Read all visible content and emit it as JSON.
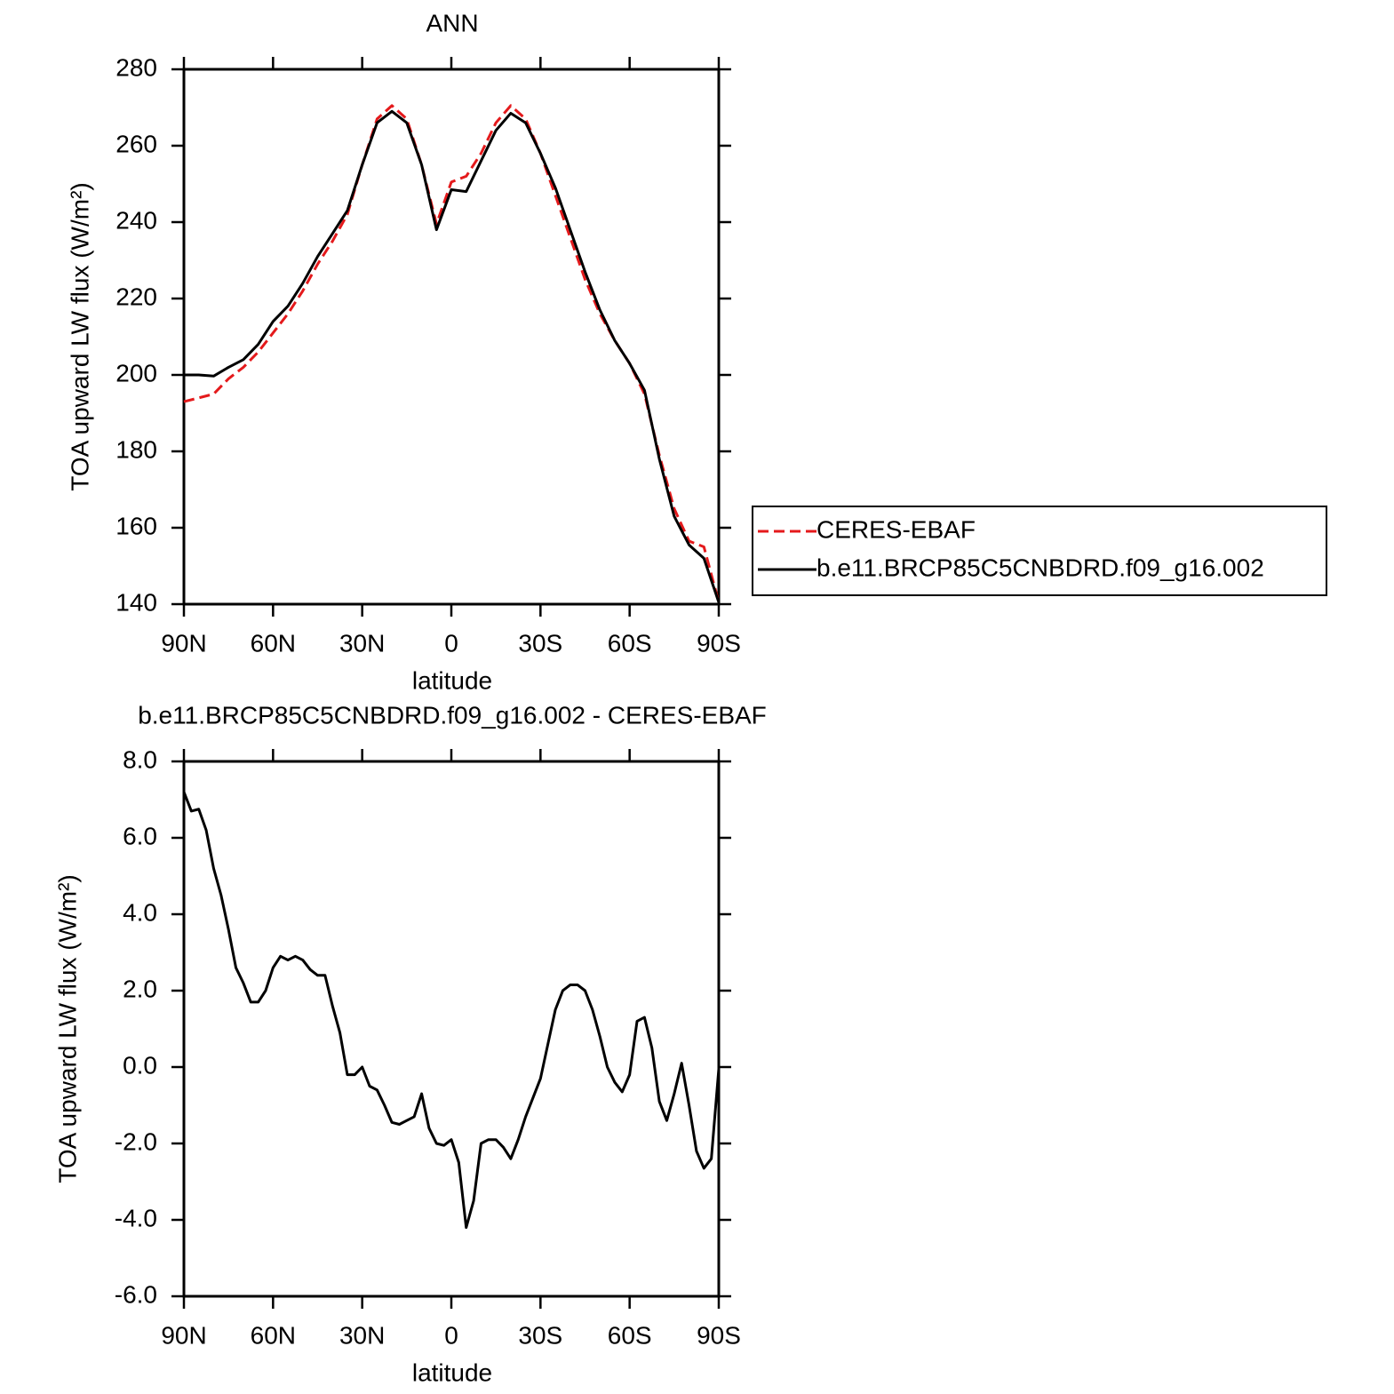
{
  "chart_data": [
    {
      "type": "line",
      "title": "ANN",
      "xlabel": "latitude",
      "ylabel": "TOA upward LW flux (W/m²)",
      "x": [
        90,
        85,
        80,
        75,
        70,
        65,
        60,
        55,
        50,
        45,
        40,
        35,
        30,
        25,
        20,
        15,
        10,
        5,
        0,
        -5,
        -10,
        -15,
        -20,
        -25,
        -30,
        -35,
        -40,
        -45,
        -50,
        -55,
        -60,
        -65,
        -70,
        -75,
        -80,
        -85,
        -90
      ],
      "series": [
        {
          "name": "CERES-EBAF",
          "color": "#e41a1c",
          "line_style": "dashed",
          "values": [
            193,
            194,
            195,
            199,
            202,
            206,
            211,
            216,
            222,
            229,
            235,
            242,
            255,
            267,
            270.5,
            267,
            255,
            239.5,
            250.5,
            252,
            258,
            266,
            270.5,
            267,
            258,
            247,
            236,
            225,
            216,
            209,
            203,
            195,
            179,
            165,
            156.5,
            155,
            140.5
          ]
        },
        {
          "name": "b.e11.BRCP85C5CNBDRD.f09_g16.002",
          "color": "#000000",
          "line_style": "solid",
          "values": [
            200,
            200,
            199.7,
            202,
            204,
            208,
            214,
            218,
            224,
            231,
            237,
            243,
            255,
            266,
            269,
            266,
            255,
            238,
            248.5,
            248,
            256,
            264,
            268.5,
            266,
            258,
            249,
            238,
            227,
            217,
            209,
            203,
            196,
            178,
            163,
            155.5,
            152,
            140.5
          ]
        }
      ],
      "xlim": [
        90,
        -90
      ],
      "xticks": [
        {
          "value": 90,
          "label": "90N"
        },
        {
          "value": 60,
          "label": "60N"
        },
        {
          "value": 30,
          "label": "30N"
        },
        0,
        {
          "value": -30,
          "label": "30S"
        },
        {
          "value": -60,
          "label": "60S"
        },
        {
          "value": -90,
          "label": "90S"
        }
      ],
      "ylim": [
        140,
        280
      ],
      "yticks": [
        140,
        160,
        180,
        200,
        220,
        240,
        260,
        280
      ],
      "legend": "right"
    },
    {
      "type": "line",
      "title": "b.e11.BRCP85C5CNBDRD.f09_g16.002 - CERES-EBAF",
      "xlabel": "latitude",
      "ylabel": "TOA upward LW flux (W/m²)",
      "x": [
        90,
        87.5,
        85,
        82.5,
        80,
        77.5,
        75,
        72.5,
        70,
        67.5,
        65,
        62.5,
        60,
        57.5,
        55,
        52.5,
        50,
        47.5,
        45,
        42.5,
        40,
        37.5,
        35,
        32.5,
        30,
        27.5,
        25,
        22.5,
        20,
        17.5,
        15,
        12.5,
        10,
        7.5,
        5,
        2.5,
        0,
        -2.5,
        -5,
        -7.5,
        -10,
        -12.5,
        -15,
        -17.5,
        -20,
        -22.5,
        -25,
        -27.5,
        -30,
        -32.5,
        -35,
        -37.5,
        -40,
        -42.5,
        -45,
        -47.5,
        -50,
        -52.5,
        -55,
        -57.5,
        -60,
        -62.5,
        -65,
        -67.5,
        -70,
        -72.5,
        -75,
        -77.5,
        -80,
        -82.5,
        -85,
        -87.5,
        -90
      ],
      "series": [
        {
          "name": "b.e11.BRCP85C5CNBDRD.f09_g16.002 - CERES-EBAF",
          "color": "#000000",
          "line_style": "solid",
          "values": [
            7.2,
            6.7,
            6.75,
            6.2,
            5.2,
            4.5,
            3.6,
            2.6,
            2.2,
            1.7,
            1.7,
            2.0,
            2.6,
            2.9,
            2.8,
            2.9,
            2.8,
            2.55,
            2.4,
            2.4,
            1.6,
            0.9,
            -0.2,
            -0.2,
            0.0,
            -0.5,
            -0.6,
            -1.0,
            -1.45,
            -1.5,
            -1.4,
            -1.3,
            -0.7,
            -1.6,
            -2.0,
            -2.05,
            -1.9,
            -2.5,
            -4.2,
            -3.5,
            -2.0,
            -1.9,
            -1.9,
            -2.1,
            -2.4,
            -1.9,
            -1.3,
            -0.8,
            -0.3,
            0.6,
            1.5,
            2.0,
            2.15,
            2.15,
            2.0,
            1.5,
            0.8,
            0.0,
            -0.4,
            -0.65,
            -0.2,
            1.2,
            1.3,
            0.5,
            -0.9,
            -1.4,
            -0.7,
            0.1,
            -1.0,
            -2.2,
            -2.65,
            -2.4,
            -0.05
          ]
        }
      ],
      "xlim": [
        90,
        -90
      ],
      "xticks": [
        {
          "value": 90,
          "label": "90N"
        },
        {
          "value": 60,
          "label": "60N"
        },
        {
          "value": 30,
          "label": "30N"
        },
        0,
        {
          "value": -30,
          "label": "30S"
        },
        {
          "value": -60,
          "label": "60S"
        },
        {
          "value": -90,
          "label": "90S"
        }
      ],
      "ylim": [
        -6,
        8
      ],
      "yticks": [
        {
          "value": -6,
          "label": "-6.0"
        },
        {
          "value": -4,
          "label": "-4.0"
        },
        {
          "value": -2,
          "label": "-2.0"
        },
        {
          "value": 0,
          "label": "0.0"
        },
        {
          "value": 2,
          "label": "2.0"
        },
        {
          "value": 4,
          "label": "4.0"
        },
        {
          "value": 6,
          "label": "6.0"
        },
        {
          "value": 8,
          "label": "8.0"
        }
      ]
    }
  ]
}
